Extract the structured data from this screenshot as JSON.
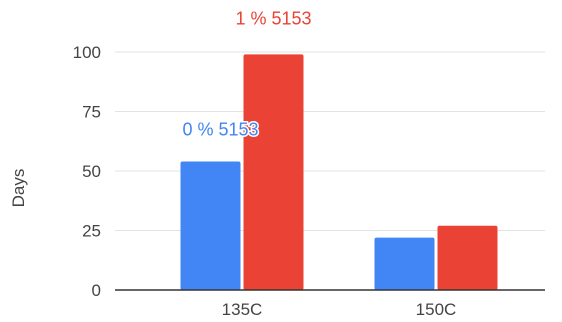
{
  "chart_data": {
    "type": "bar",
    "categories": [
      "135C",
      "150C"
    ],
    "series": [
      {
        "color": "#4285f4",
        "values": [
          54,
          22
        ]
      },
      {
        "color": "#ea4335",
        "values": [
          99,
          27
        ]
      }
    ],
    "ylabel": "Days",
    "xlabel": "",
    "ylim": [
      0,
      100
    ],
    "yticks": [
      "0",
      "25",
      "50",
      "75",
      "100"
    ],
    "grid": true,
    "annotations": [
      {
        "text": "0 % 5153",
        "series": 0,
        "category": 0,
        "color": "#4285f4"
      },
      {
        "text": "1 % 5153",
        "series": 1,
        "category": 0,
        "color": "#ea4335"
      }
    ]
  }
}
